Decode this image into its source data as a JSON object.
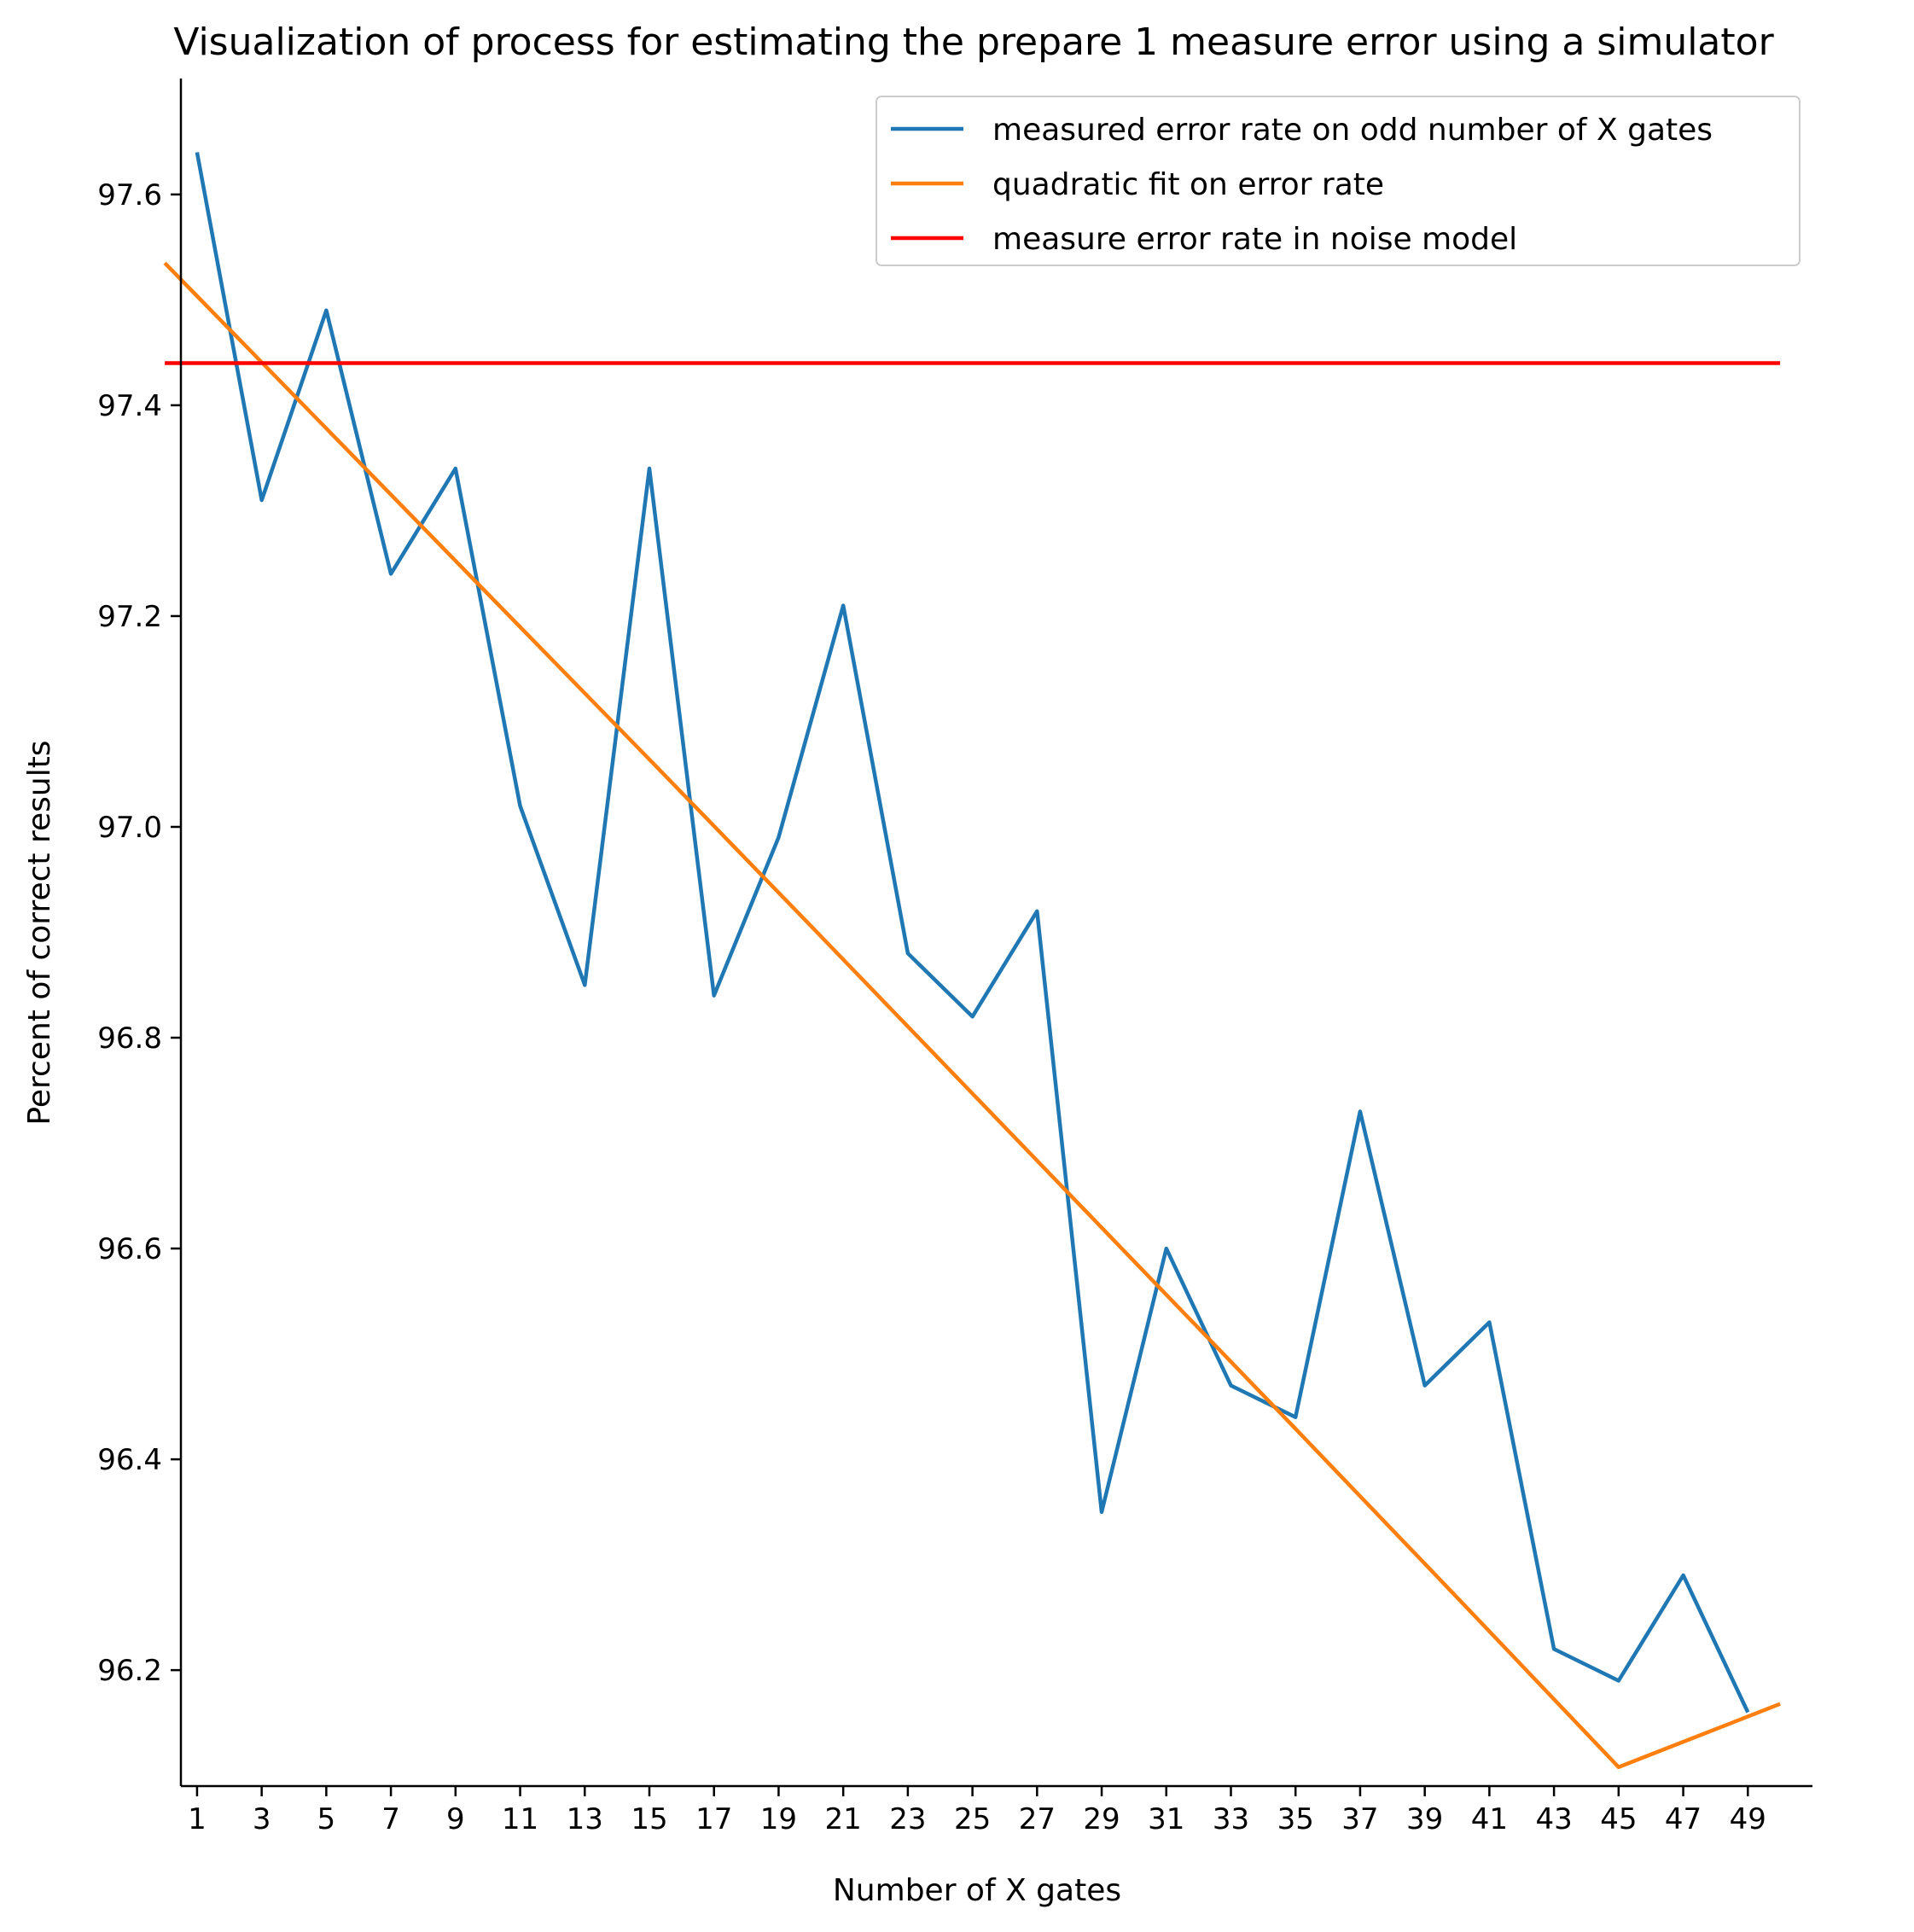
{
  "chart_data": {
    "type": "line",
    "title": "Visualization of process for estimating the prepare 1 measure error using a simulator",
    "xlabel": "Number of X gates",
    "ylabel": "Percent of correct results",
    "xlim": [
      0.5,
      51.0
    ],
    "ylim": [
      96.09,
      97.71
    ],
    "xticks": [
      1,
      3,
      5,
      7,
      9,
      11,
      13,
      15,
      17,
      19,
      21,
      23,
      25,
      27,
      29,
      31,
      33,
      35,
      37,
      39,
      41,
      43,
      45,
      47,
      49
    ],
    "yticks": [
      "96.2",
      "96.4",
      "96.6",
      "96.8",
      "97.0",
      "97.2",
      "97.4",
      "97.6"
    ],
    "grid": false,
    "legend_position": "upper right",
    "series": [
      {
        "name": "measured error rate on odd number of X gates",
        "color": "#1f77b4",
        "x": [
          1,
          3,
          5,
          7,
          9,
          11,
          13,
          15,
          17,
          19,
          21,
          23,
          25,
          27,
          29,
          31,
          33,
          35,
          37,
          39,
          41,
          43,
          45,
          47,
          49
        ],
        "y": [
          97.64,
          97.31,
          97.49,
          97.24,
          97.34,
          97.02,
          96.85,
          97.34,
          96.84,
          96.99,
          97.21,
          96.88,
          96.82,
          96.92,
          96.35,
          96.6,
          96.47,
          96.44,
          96.73,
          96.47,
          96.53,
          96.22,
          96.19,
          96.29,
          96.16
        ]
      },
      {
        "name": "quadratic fit on error rate",
        "color": "#ff7f0e",
        "x": [
          0,
          5,
          10,
          15,
          20,
          25,
          30,
          35,
          40,
          45,
          50
        ],
        "y": [
          97.535,
          97.378,
          97.221,
          97.064,
          96.906,
          96.747,
          96.588,
          96.429,
          96.269,
          96.108,
          96.168
        ]
      },
      {
        "name": "measure error rate in noise model",
        "color": "#ff0000",
        "x": [
          0,
          50
        ],
        "y": [
          97.44,
          97.44
        ]
      }
    ]
  }
}
